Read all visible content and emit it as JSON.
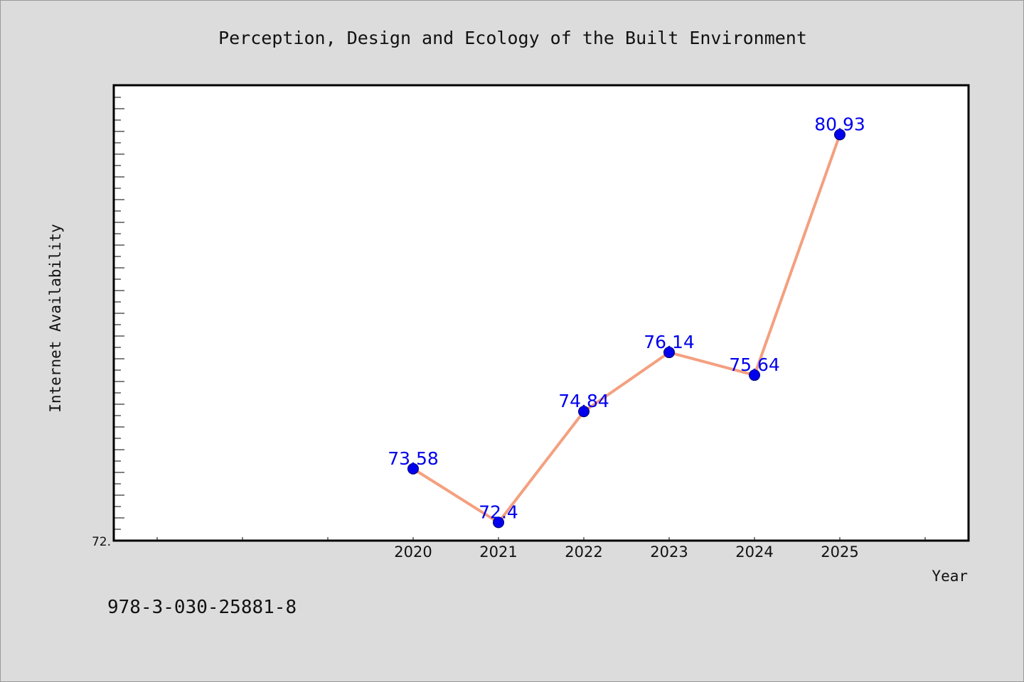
{
  "chart_data": {
    "type": "line",
    "title": "Perception, Design and Ecology of the Built Environment",
    "xlabel": "Year",
    "ylabel": "Internet Availability",
    "categories": [
      "2020",
      "2021",
      "2022",
      "2023",
      "2024",
      "2025"
    ],
    "series": [
      {
        "values": [
          73.58,
          72.4,
          74.84,
          76.14,
          75.64,
          80.93
        ],
        "labels": [
          "73.58",
          "72.4",
          "74.84",
          "76.14",
          "75.64",
          "80.93"
        ],
        "line_color": "#f4a07f",
        "marker_color": "#0000ee",
        "label_color": "#0000ee"
      }
    ],
    "x_domain": [
      2016.5,
      2026.5
    ],
    "xlim": [
      2016.5,
      2026.5
    ],
    "ylim": [
      72.0,
      82.0
    ],
    "y_tick_labels": [
      "72."
    ],
    "grid": false,
    "legend": "none"
  },
  "annotation": {
    "isbn": "978-3-030-25881-8"
  },
  "colors": {
    "background": "#dcdcdc",
    "plot_background": "#ffffff",
    "axis": "#000000"
  }
}
